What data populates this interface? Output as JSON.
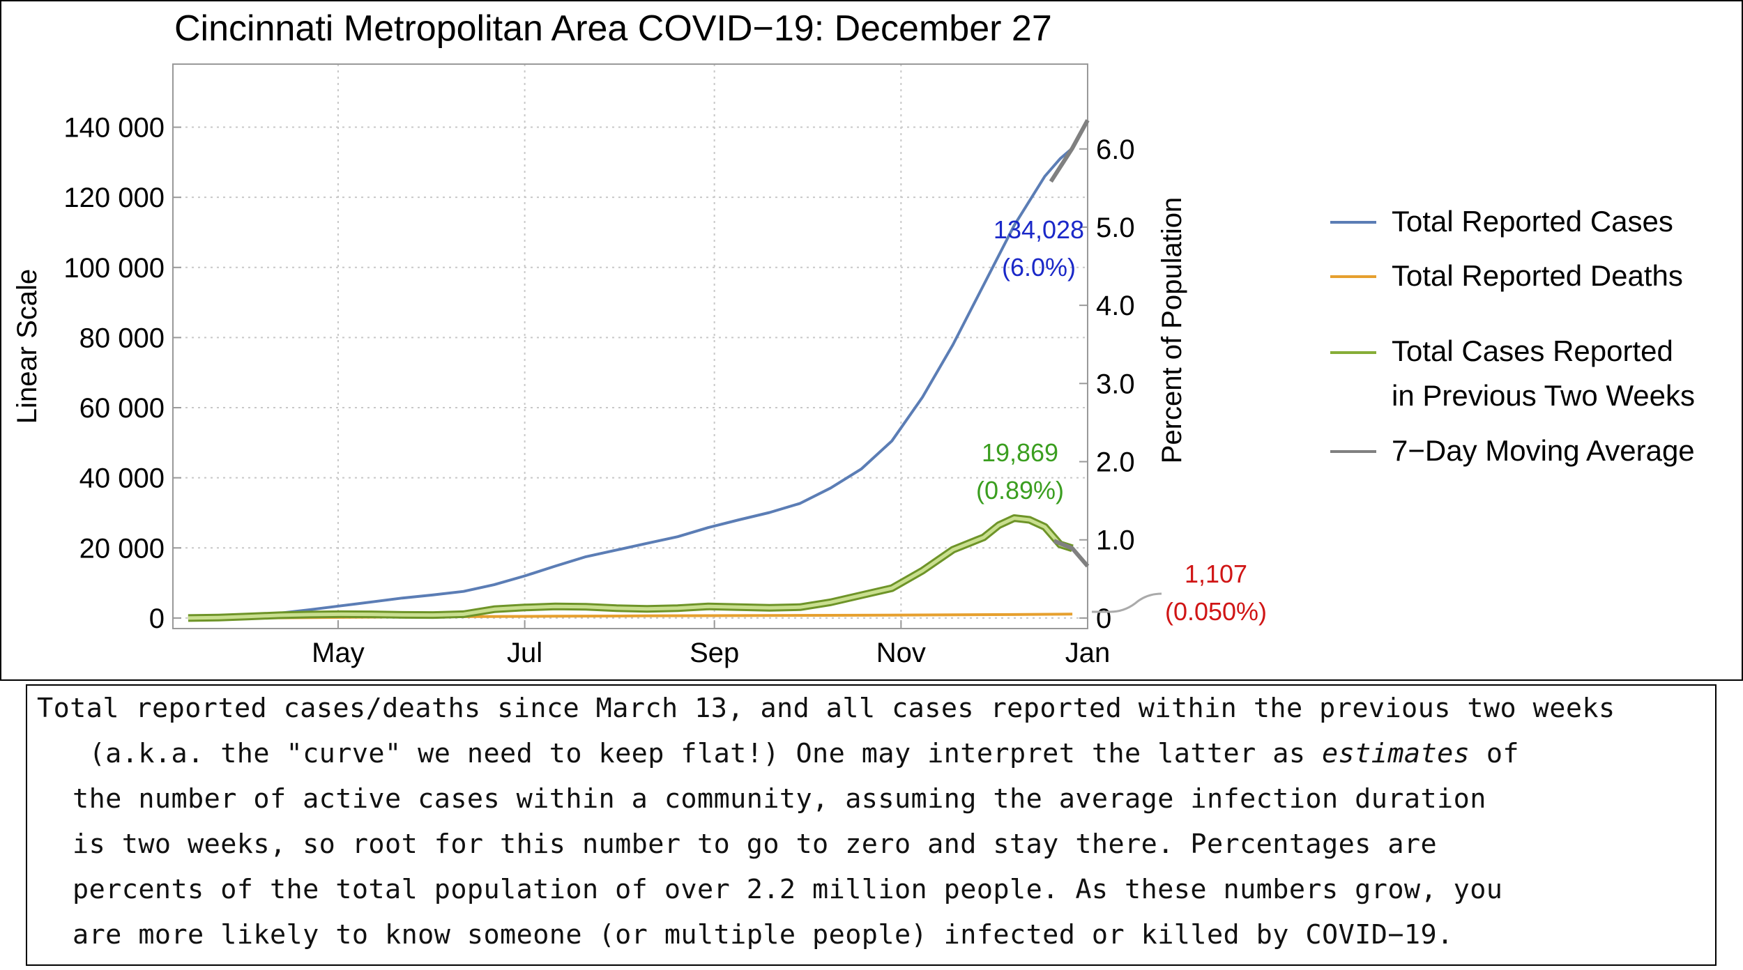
{
  "chart_data": {
    "type": "line",
    "title": "Cincinnati Metropolitan Area COVID−19: December 27",
    "ylabel": "Linear Scale",
    "ylabel_right": "Percent of Population",
    "ylim": [
      -3000,
      158000
    ],
    "yticks": [
      0,
      20000,
      40000,
      60000,
      80000,
      100000,
      120000,
      140000
    ],
    "ytick_labels": [
      "0",
      "20 000",
      "40 000",
      "60 000",
      "80 000",
      "100 000",
      "120 000",
      "140 000"
    ],
    "right_ticks_pct": [
      0,
      1.0,
      2.0,
      3.0,
      4.0,
      5.0,
      6.0
    ],
    "right_tick_labels": [
      "0",
      "1.0",
      "2.0",
      "3.0",
      "4.0",
      "5.0",
      "6.0"
    ],
    "population": 2230000,
    "xlim_days": [
      -5,
      294
    ],
    "x_origin_date": "March 13",
    "x_tick_days": [
      49,
      110,
      172,
      233,
      294
    ],
    "x_tick_labels": [
      "May",
      "Jul",
      "Sep",
      "Nov",
      "Jan"
    ],
    "grid": true,
    "legend_position": "right",
    "legend": [
      {
        "label": "Total Reported Cases",
        "color": "#5b7db5"
      },
      {
        "label": "Total Reported Deaths",
        "color": "#e6a02f"
      },
      {
        "label": "Total Cases Reported",
        "label2": "in Previous Two Weeks",
        "color": "#86ad37"
      },
      {
        "label": "7−Day Moving Average",
        "color": "#808080"
      }
    ],
    "series": [
      {
        "name": "Total Reported Cases",
        "color": "#5b7db5",
        "x": [
          0,
          10,
          20,
          30,
          40,
          50,
          60,
          70,
          80,
          90,
          100,
          110,
          120,
          130,
          140,
          150,
          160,
          170,
          180,
          190,
          200,
          210,
          220,
          230,
          240,
          250,
          260,
          270,
          280,
          285,
          289
        ],
        "y": [
          0,
          150,
          600,
          1400,
          2400,
          3500,
          4600,
          5700,
          6600,
          7600,
          9500,
          12000,
          14800,
          17500,
          19400,
          21300,
          23200,
          25800,
          28000,
          30100,
          32700,
          37100,
          42500,
          50500,
          63000,
          78000,
          95000,
          112000,
          126000,
          131000,
          134028
        ]
      },
      {
        "name": "Total Reported Deaths",
        "color": "#e6a02f",
        "x": [
          0,
          30,
          60,
          90,
          120,
          150,
          180,
          210,
          240,
          270,
          289
        ],
        "y": [
          0,
          60,
          250,
          400,
          520,
          620,
          700,
          780,
          880,
          1000,
          1107
        ]
      },
      {
        "name": "Total Cases Reported in Previous Two Weeks",
        "color": "#86ad37",
        "x": [
          0,
          10,
          20,
          30,
          40,
          50,
          60,
          70,
          80,
          90,
          100,
          110,
          120,
          130,
          140,
          150,
          160,
          170,
          180,
          190,
          200,
          210,
          220,
          230,
          240,
          250,
          260,
          265,
          270,
          275,
          280,
          285,
          289
        ],
        "y": [
          0,
          150,
          450,
          800,
          1000,
          1100,
          1050,
          900,
          850,
          1100,
          2500,
          3000,
          3300,
          3200,
          2800,
          2600,
          2800,
          3300,
          3100,
          2900,
          3100,
          4500,
          6500,
          8500,
          13500,
          19500,
          23000,
          26500,
          28500,
          28000,
          26000,
          21000,
          19869
        ]
      }
    ],
    "moving_average": {
      "name": "7−Day Moving Average",
      "color": "#808080",
      "segments": [
        {
          "x": [
            282,
            289,
            294
          ],
          "y": [
            124500,
            134028,
            142000
          ]
        },
        {
          "x": [
            283,
            289,
            294
          ],
          "y": [
            22000,
            19869,
            14800
          ]
        }
      ]
    },
    "annotations": [
      {
        "value": "134,028",
        "pct": "(6.0%)",
        "color": "#1a28c8"
      },
      {
        "value": "19,869",
        "pct": "(0.89%)",
        "color": "#3a9e1f"
      },
      {
        "value": "1,107",
        "pct": "(0.050%)",
        "color": "#d01515"
      }
    ]
  },
  "caption": {
    "lines": [
      "Total reported cases/deaths since March 13, and all cases reported within the previous two weeks",
      " (a.k.a. the \"curve\" we need to keep flat!) One may interpret the latter as ",
      "the number of active cases within a community, assuming the average infection duration",
      "is two weeks, so root for this number to go to zero and stay there. Percentages are",
      "percents of the total population of over 2.2 million people. As these numbers grow, you",
      "are more likely to know someone (or multiple people) infected or killed by COVID−19."
    ],
    "emphasis_word": "estimates",
    "line2_tail": " of"
  }
}
